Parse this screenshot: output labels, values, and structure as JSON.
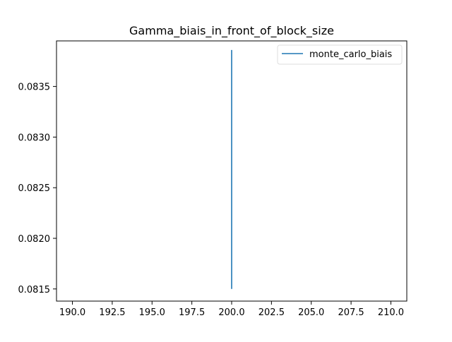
{
  "chart_data": {
    "type": "line",
    "title": "Gamma_biais_in_front_of_block_size",
    "xlabel": "",
    "ylabel": "",
    "xlim": [
      189.0,
      211.0
    ],
    "ylim": [
      0.08138,
      0.08395
    ],
    "xticks": [
      190.0,
      192.5,
      195.0,
      197.5,
      200.0,
      202.5,
      205.0,
      207.5,
      210.0
    ],
    "xtick_labels": [
      "190.0",
      "192.5",
      "195.0",
      "197.5",
      "200.0",
      "202.5",
      "205.0",
      "207.5",
      "210.0"
    ],
    "yticks": [
      0.0815,
      0.082,
      0.0825,
      0.083,
      0.0835
    ],
    "ytick_labels": [
      "0.0815",
      "0.0820",
      "0.0825",
      "0.0830",
      "0.0835"
    ],
    "grid": false,
    "legend_position": "upper right",
    "series": [
      {
        "name": "monte_carlo_biais",
        "color": "#1f77b4",
        "x": [
          200,
          200,
          200,
          200,
          200,
          200,
          200
        ],
        "y": [
          0.0815,
          0.0822,
          0.0828,
          0.0833,
          0.0826,
          0.0836,
          0.08386
        ]
      }
    ]
  }
}
